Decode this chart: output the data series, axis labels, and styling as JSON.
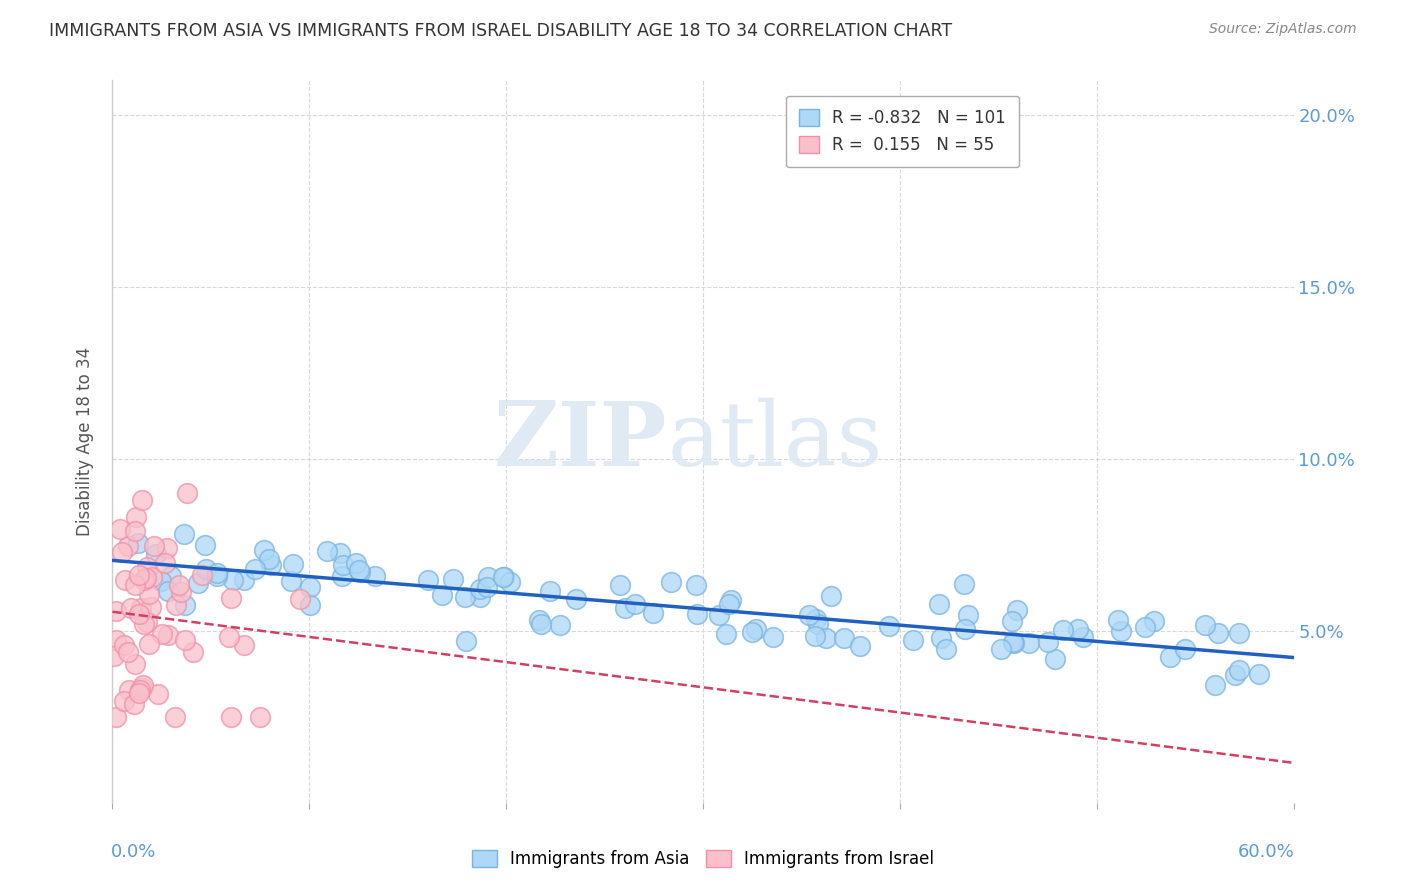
{
  "title": "IMMIGRANTS FROM ASIA VS IMMIGRANTS FROM ISRAEL DISABILITY AGE 18 TO 34 CORRELATION CHART",
  "source": "Source: ZipAtlas.com",
  "ylabel": "Disability Age 18 to 34",
  "xlim": [
    0.0,
    0.6
  ],
  "ylim": [
    0.0,
    0.21
  ],
  "ytick_vals": [
    0.0,
    0.05,
    0.1,
    0.15,
    0.2
  ],
  "ytick_labels_right": [
    "",
    "5.0%",
    "10.0%",
    "15.0%",
    "20.0%"
  ],
  "watermark_zip": "ZIP",
  "watermark_atlas": "atlas",
  "asia_R": -0.832,
  "asia_N": 101,
  "israel_R": 0.155,
  "israel_N": 55,
  "asia_color": "#add8f7",
  "asia_edge": "#7ab3e0",
  "israel_color": "#f9c0cb",
  "israel_edge": "#f090a8",
  "asia_line_color": "#2060c0",
  "israel_line_color": "#d04060",
  "background_color": "#ffffff",
  "grid_color": "#d8d8d8",
  "title_color": "#333333",
  "source_color": "#888888",
  "axis_label_color": "#555555",
  "right_tick_color": "#5b9bd5",
  "legend_asia_color": "#add8f7",
  "legend_asia_edge": "#7ab3e0",
  "legend_israel_color": "#f9c0cb",
  "legend_israel_edge": "#f090a8"
}
